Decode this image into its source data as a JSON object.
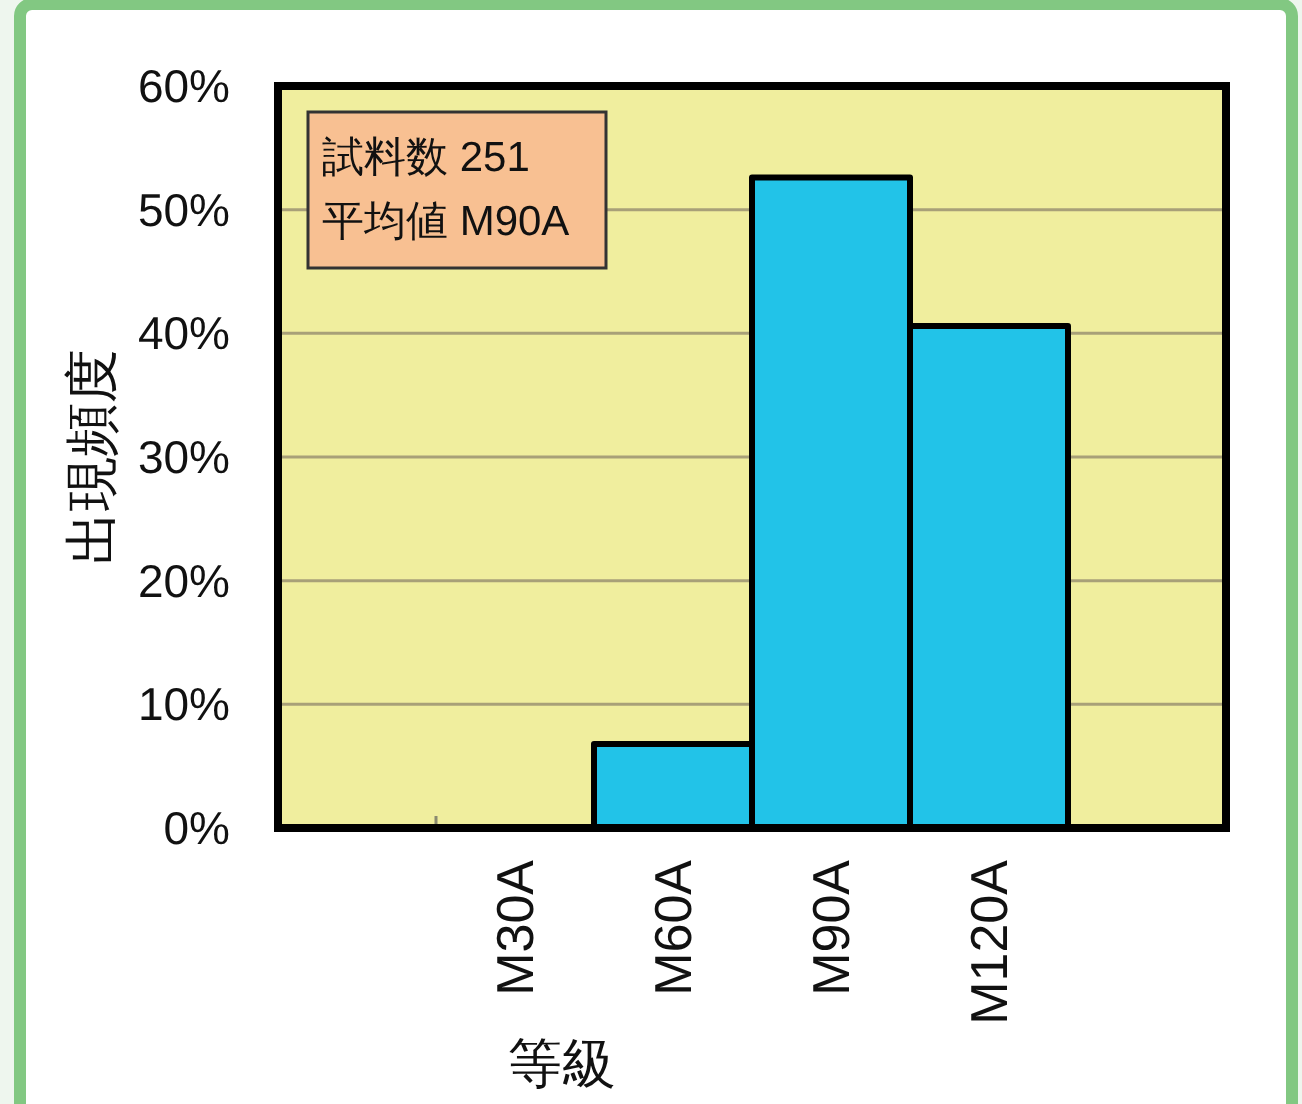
{
  "chart_data": {
    "type": "bar",
    "ylabel": "出現頻度",
    "xlabel": "等級",
    "categories": [
      null,
      "M30A",
      "M60A",
      "M90A",
      "M120A",
      null
    ],
    "values": [
      null,
      0,
      6.8,
      52.6,
      40.6,
      null
    ],
    "color": "#22c3e8",
    "ylim": [
      0,
      60
    ],
    "yticks": [
      {
        "value": 0,
        "label": "0%"
      },
      {
        "value": 10,
        "label": "10%"
      },
      {
        "value": 20,
        "label": "20%"
      },
      {
        "value": 30,
        "label": "30%"
      },
      {
        "value": 40,
        "label": "40%"
      },
      {
        "value": 50,
        "label": "50%"
      },
      {
        "value": 60,
        "label": "60%"
      }
    ],
    "grid": "y",
    "annotations": [
      "試料数 251",
      "平均値 M90A"
    ]
  }
}
